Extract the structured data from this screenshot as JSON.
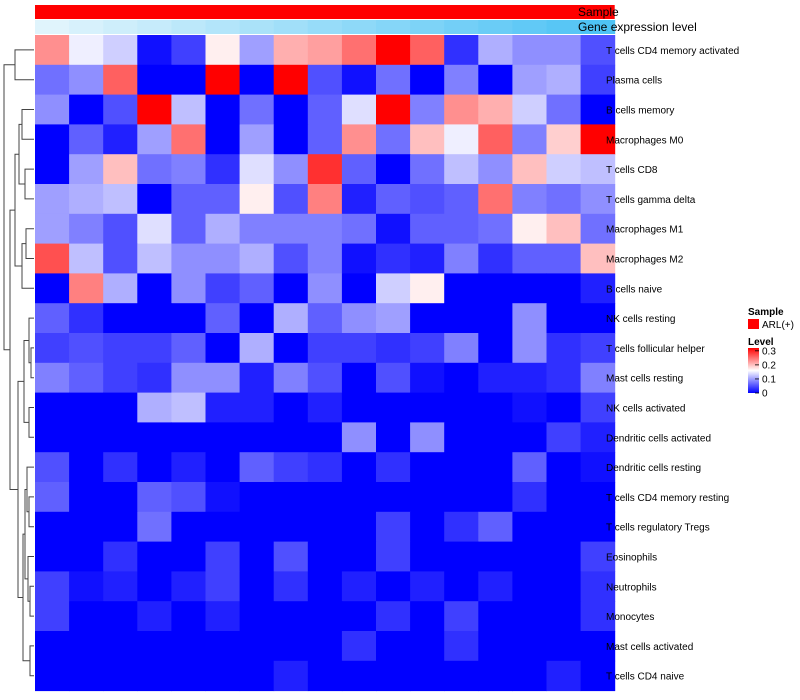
{
  "chart_data": {
    "type": "heatmap",
    "title": "",
    "annotation_tracks": [
      {
        "name": "Sample",
        "value": "ARL(+)",
        "color": "#ff0000"
      },
      {
        "name": "Gene expression level"
      }
    ],
    "rows": [
      "T cells CD4 memory activated",
      "Plasma cells",
      "B cells memory",
      "Macrophages M0",
      "T cells CD8",
      "T cells gamma delta",
      "Macrophages M1",
      "Macrophages M2",
      "B cells naive",
      "NK cells resting",
      "T cells follicular helper",
      "Mast cells resting",
      "NK cells activated",
      "Dendritic cells activated",
      "Dendritic cells resting",
      "T cells CD4 memory resting",
      "T cells regulatory  Tregs",
      "Eosinophils",
      "Neutrophils",
      "Monocytes",
      "Mast cells activated",
      "T cells CD4 naive"
    ],
    "columns": 17,
    "values": [
      [
        0.23,
        0.15,
        0.13,
        0.01,
        0.04,
        0.17,
        0.1,
        0.21,
        0.22,
        0.25,
        0.32,
        0.26,
        0.03,
        0.11,
        0.09,
        0.09,
        0.05
      ],
      [
        0.07,
        0.09,
        0.26,
        0.0,
        0.0,
        0.32,
        0.0,
        0.32,
        0.05,
        0.01,
        0.07,
        0.0,
        0.08,
        0.0,
        0.1,
        0.11,
        0.04
      ],
      [
        0.09,
        0.0,
        0.05,
        0.32,
        0.12,
        0.0,
        0.07,
        0.0,
        0.06,
        0.14,
        0.32,
        0.08,
        0.23,
        0.21,
        0.13,
        0.07,
        0.0
      ],
      [
        0.0,
        0.06,
        0.02,
        0.1,
        0.25,
        0.0,
        0.1,
        0.0,
        0.06,
        0.23,
        0.07,
        0.2,
        0.15,
        0.26,
        0.08,
        0.19,
        0.32
      ],
      [
        0.0,
        0.1,
        0.2,
        0.07,
        0.08,
        0.03,
        0.14,
        0.09,
        0.29,
        0.06,
        0.0,
        0.07,
        0.12,
        0.09,
        0.2,
        0.13,
        0.12
      ],
      [
        0.1,
        0.11,
        0.12,
        0.0,
        0.06,
        0.06,
        0.17,
        0.05,
        0.24,
        0.02,
        0.06,
        0.05,
        0.06,
        0.25,
        0.08,
        0.07,
        0.09
      ],
      [
        0.1,
        0.08,
        0.05,
        0.14,
        0.06,
        0.11,
        0.08,
        0.08,
        0.08,
        0.07,
        0.01,
        0.06,
        0.06,
        0.07,
        0.17,
        0.2,
        0.07
      ],
      [
        0.27,
        0.12,
        0.05,
        0.12,
        0.09,
        0.09,
        0.11,
        0.05,
        0.08,
        0.01,
        0.03,
        0.02,
        0.08,
        0.03,
        0.06,
        0.06,
        0.2
      ],
      [
        0.0,
        0.24,
        0.11,
        0.0,
        0.09,
        0.04,
        0.06,
        0.0,
        0.09,
        0.0,
        0.13,
        0.17,
        0.0,
        0.0,
        0.0,
        0.0,
        0.02
      ],
      [
        0.06,
        0.03,
        0.0,
        0.0,
        0.0,
        0.06,
        0.0,
        0.11,
        0.06,
        0.09,
        0.1,
        0.0,
        0.0,
        0.0,
        0.09,
        0.0,
        0.0
      ],
      [
        0.04,
        0.05,
        0.04,
        0.04,
        0.06,
        0.0,
        0.11,
        0.0,
        0.04,
        0.04,
        0.03,
        0.04,
        0.08,
        0.0,
        0.09,
        0.03,
        0.04
      ],
      [
        0.08,
        0.06,
        0.04,
        0.03,
        0.09,
        0.09,
        0.02,
        0.08,
        0.05,
        0.0,
        0.05,
        0.01,
        0.0,
        0.02,
        0.02,
        0.03,
        0.08
      ],
      [
        0.0,
        0.0,
        0.0,
        0.11,
        0.12,
        0.02,
        0.02,
        0.0,
        0.02,
        0.0,
        0.0,
        0.0,
        0.0,
        0.0,
        0.01,
        0.0,
        0.04
      ],
      [
        0.0,
        0.0,
        0.0,
        0.0,
        0.0,
        0.0,
        0.0,
        0.0,
        0.0,
        0.09,
        0.0,
        0.09,
        0.0,
        0.0,
        0.0,
        0.04,
        0.02
      ],
      [
        0.05,
        0.0,
        0.03,
        0.0,
        0.02,
        0.0,
        0.06,
        0.04,
        0.03,
        0.0,
        0.03,
        0.0,
        0.0,
        0.0,
        0.06,
        0.0,
        0.01
      ],
      [
        0.06,
        0.0,
        0.0,
        0.06,
        0.05,
        0.01,
        0.0,
        0.0,
        0.0,
        0.0,
        0.0,
        0.0,
        0.0,
        0.0,
        0.03,
        0.0,
        0.0
      ],
      [
        0.0,
        0.0,
        0.0,
        0.07,
        0.0,
        0.0,
        0.0,
        0.0,
        0.0,
        0.0,
        0.04,
        0.0,
        0.03,
        0.06,
        0.0,
        0.0,
        0.0
      ],
      [
        0.0,
        0.0,
        0.03,
        0.0,
        0.0,
        0.04,
        0.0,
        0.05,
        0.0,
        0.0,
        0.04,
        0.0,
        0.0,
        0.0,
        0.0,
        0.0,
        0.04
      ],
      [
        0.04,
        0.01,
        0.02,
        0.0,
        0.02,
        0.04,
        0.0,
        0.03,
        0.0,
        0.02,
        0.0,
        0.02,
        0.0,
        0.02,
        0.0,
        0.0,
        0.03
      ],
      [
        0.04,
        0.0,
        0.0,
        0.02,
        0.0,
        0.02,
        0.0,
        0.0,
        0.0,
        0.0,
        0.03,
        0.0,
        0.04,
        0.0,
        0.0,
        0.0,
        0.03
      ],
      [
        0.0,
        0.0,
        0.0,
        0.0,
        0.0,
        0.0,
        0.0,
        0.0,
        0.0,
        0.03,
        0.0,
        0.0,
        0.03,
        0.0,
        0.0,
        0.0,
        0.0
      ],
      [
        0.0,
        0.0,
        0.0,
        0.0,
        0.0,
        0.0,
        0.0,
        0.02,
        0.0,
        0.0,
        0.0,
        0.0,
        0.0,
        0.0,
        0.0,
        0.02,
        0.0
      ]
    ],
    "gene_expression_level": [
      0.0,
      0.06,
      0.12,
      0.18,
      0.25,
      0.31,
      0.37,
      0.43,
      0.5,
      0.56,
      0.62,
      0.68,
      0.75,
      0.81,
      0.87,
      0.93,
      1.0
    ],
    "color_scale": {
      "low": "#0000ff",
      "mid": "#ffffff",
      "high": "#ff0000",
      "domain": [
        0,
        0.32
      ]
    },
    "legend": {
      "sample_title": "Sample",
      "sample_entry": "ARL(+)",
      "level_title": "Level",
      "ticks": [
        {
          "label": "0.3",
          "value": 0.3
        },
        {
          "label": "0.2",
          "value": 0.2
        },
        {
          "label": "0.1",
          "value": 0.1
        },
        {
          "label": "0",
          "value": 0
        }
      ]
    }
  }
}
